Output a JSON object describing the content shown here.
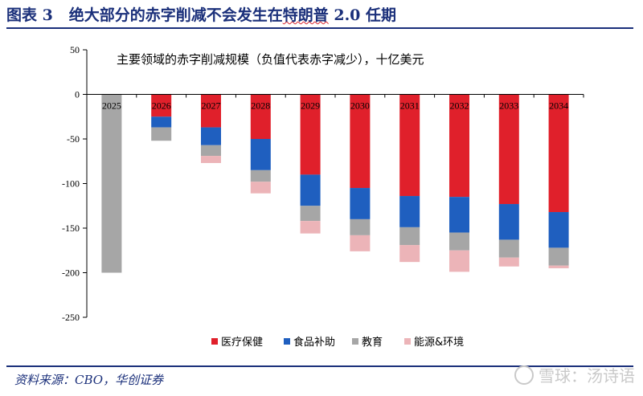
{
  "figure": {
    "label": "图表 3",
    "title_main": "绝大部分的赤字削减不会发生在",
    "title_underlined": "特朗普",
    "title_tail": " 2.0 任期",
    "source": "资料来源：CBO，华创证券",
    "watermark": "雪球：汤诗语"
  },
  "chart_data": {
    "type": "bar",
    "stacked": true,
    "title": "主要领域的赤字削减规模（负值代表赤字减少），十亿美元",
    "xlabel": "",
    "ylabel": "",
    "ylim": [
      -250,
      50
    ],
    "yticks": [
      50,
      0,
      -50,
      -100,
      -150,
      -200,
      -250
    ],
    "grid": false,
    "legend_position": "bottom",
    "categories": [
      "2025",
      "2026",
      "2027",
      "2028",
      "2029",
      "2030",
      "2031",
      "2032",
      "2033",
      "2034"
    ],
    "series": [
      {
        "name": "医疗保健",
        "color": "#e0202b",
        "values": [
          0,
          -25,
          -37,
          -50,
          -90,
          -105,
          -114,
          -115,
          -123,
          -132
        ]
      },
      {
        "name": "食品补助",
        "color": "#1f5fbf",
        "values": [
          0,
          -12,
          -20,
          -35,
          -35,
          -35,
          -35,
          -40,
          -40,
          -40
        ]
      },
      {
        "name": "教育",
        "color": "#a6a6a6",
        "values": [
          -200,
          -15,
          -12,
          -13,
          -17,
          -18,
          -20,
          -20,
          -20,
          -20
        ]
      },
      {
        "name": "能源&环境",
        "color": "#ecb4b8",
        "values": [
          0,
          0,
          -8,
          -13,
          -14,
          -18,
          -19,
          -24,
          -10,
          -3
        ]
      }
    ]
  }
}
